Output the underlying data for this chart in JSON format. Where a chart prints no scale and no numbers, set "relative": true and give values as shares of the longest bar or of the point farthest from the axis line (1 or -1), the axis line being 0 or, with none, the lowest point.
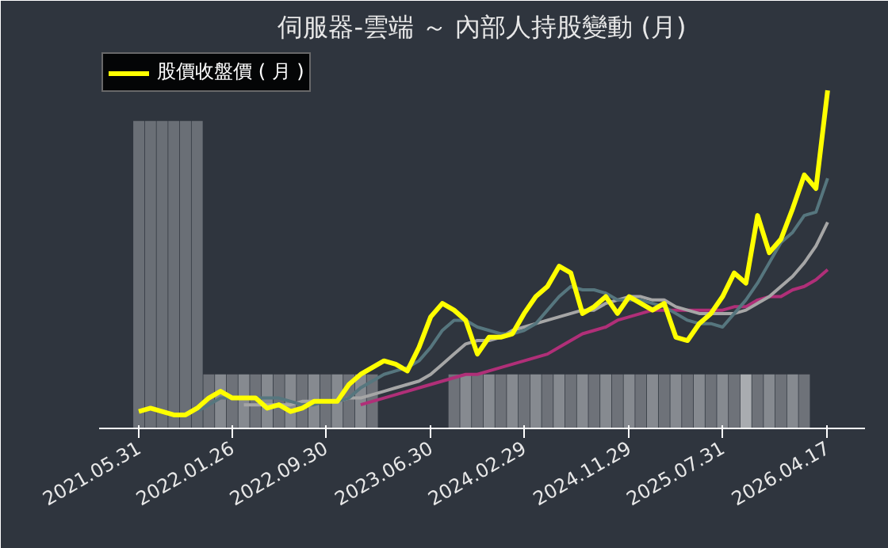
{
  "chart_data": {
    "type": "line",
    "title": "伺服器-雲端 ～ 內部人持股變動 (月)",
    "relative": true,
    "legend": "top left",
    "grid": false,
    "tick_labels": "x",
    "categories": [
      "2021.05.31",
      null,
      null,
      null,
      null,
      null,
      null,
      null,
      "2022.01.26",
      null,
      null,
      null,
      null,
      null,
      null,
      null,
      "2022.09.30",
      null,
      null,
      null,
      null,
      null,
      null,
      null,
      null,
      "2023.06.30",
      null,
      null,
      null,
      null,
      null,
      null,
      null,
      "2024.02.29",
      null,
      null,
      null,
      null,
      null,
      null,
      null,
      null,
      "2024.11.29",
      null,
      null,
      null,
      null,
      null,
      null,
      null,
      "2025.07.31",
      null,
      null,
      null,
      null,
      null,
      null,
      null,
      null,
      "2026.04.17"
    ],
    "series": [
      {
        "type": "bar",
        "colors": [
          "#6a6f76",
          "#6a6f76",
          "#6a6f76",
          "#6a6f76",
          "#6a6f76",
          "#6a6f76",
          "#6e7279",
          "#868a90",
          "#6e7279",
          "#868a90",
          "#6e7279",
          "#868a90",
          "#6e7279",
          "#868a90",
          "#6e7279",
          "#868a90",
          "#6e7279",
          "#868a90",
          "#6e7279",
          "#868a90",
          "#6e7279",
          "#6e7279",
          "#6e7279",
          "#6e7279",
          "#6e7279",
          "#6e7279",
          "#6e7279",
          "#6e7279",
          "#868a90",
          "#6e7279",
          "#868a90",
          "#6e7279",
          "#868a90",
          "#6e7279",
          "#868a90",
          "#6e7279",
          "#868a90",
          "#6e7279",
          "#868a90",
          "#6e7279",
          "#868a90",
          "#6e7279",
          "#868a90",
          "#6e7279",
          "#868a90",
          "#6e7279",
          "#868a90",
          "#6e7279",
          "#868a90",
          "#6e7279",
          "#868a90",
          "#6e7279",
          "#a9acb0",
          "#6e7279",
          "#868a90",
          "#6e7279",
          "#868a90",
          "#6e7279",
          "#6e7279",
          "#6e7279"
        ],
        "values": [
          0.91,
          0.91,
          0.91,
          0.91,
          0.91,
          0.91,
          0.16,
          0.16,
          0.16,
          0.16,
          0.16,
          0.16,
          0.16,
          0.16,
          0.16,
          0.16,
          0.16,
          0.16,
          0.16,
          0.16,
          0.16,
          null,
          null,
          null,
          null,
          null,
          null,
          0.16,
          0.16,
          0.16,
          0.16,
          0.16,
          0.16,
          0.16,
          0.16,
          0.16,
          0.16,
          0.16,
          0.16,
          0.16,
          0.16,
          0.16,
          0.16,
          0.16,
          0.16,
          0.16,
          0.16,
          0.16,
          0.16,
          0.16,
          0.16,
          0.16,
          0.16,
          0.16,
          0.16,
          0.16,
          0.16,
          0.16,
          null,
          null
        ]
      },
      {
        "color": "#b02f78",
        "values": [
          null,
          null,
          null,
          null,
          null,
          null,
          null,
          null,
          null,
          null,
          null,
          null,
          null,
          null,
          null,
          null,
          null,
          null,
          null,
          0.07,
          0.08,
          0.09,
          0.1,
          0.11,
          0.12,
          0.13,
          0.14,
          0.15,
          0.16,
          0.16,
          0.17,
          0.18,
          0.19,
          0.2,
          0.21,
          0.22,
          0.24,
          0.26,
          0.28,
          0.29,
          0.3,
          0.32,
          0.33,
          0.34,
          0.35,
          0.35,
          0.35,
          0.35,
          0.35,
          0.35,
          0.35,
          0.36,
          0.36,
          0.38,
          0.39,
          0.39,
          0.41,
          0.42,
          0.44,
          0.47
        ]
      },
      {
        "color": "#a6a6a6",
        "values": [
          null,
          null,
          null,
          null,
          null,
          null,
          null,
          null,
          null,
          0.07,
          0.07,
          0.07,
          0.07,
          0.07,
          0.08,
          0.08,
          0.08,
          0.08,
          0.09,
          0.09,
          0.1,
          0.11,
          0.12,
          0.13,
          0.14,
          0.16,
          0.19,
          0.22,
          0.25,
          0.26,
          0.26,
          0.27,
          0.29,
          0.3,
          0.31,
          0.32,
          0.33,
          0.34,
          0.35,
          0.35,
          0.37,
          0.38,
          0.39,
          0.39,
          0.38,
          0.38,
          0.36,
          0.35,
          0.34,
          0.34,
          0.34,
          0.34,
          0.35,
          0.37,
          0.39,
          0.42,
          0.45,
          0.49,
          0.54,
          0.61
        ]
      },
      {
        "color": "#56767e",
        "values": [
          null,
          null,
          null,
          null,
          null,
          0.05,
          0.07,
          0.09,
          0.09,
          0.09,
          0.09,
          0.09,
          0.09,
          0.08,
          0.07,
          0.07,
          0.08,
          0.08,
          0.09,
          0.12,
          0.14,
          0.16,
          0.17,
          0.18,
          0.2,
          0.24,
          0.29,
          0.32,
          0.32,
          0.3,
          0.29,
          0.28,
          0.28,
          0.29,
          0.31,
          0.35,
          0.39,
          0.42,
          0.41,
          0.41,
          0.4,
          0.38,
          0.38,
          0.38,
          0.37,
          0.36,
          0.34,
          0.32,
          0.31,
          0.31,
          0.3,
          0.34,
          0.38,
          0.43,
          0.49,
          0.55,
          0.58,
          0.63,
          0.64,
          0.74
        ]
      },
      {
        "name": "股價收盤價 ( 月 )",
        "color": "#ffff00",
        "values": [
          0.05,
          0.06,
          0.05,
          0.04,
          0.04,
          0.06,
          0.09,
          0.11,
          0.09,
          0.09,
          0.09,
          0.06,
          0.07,
          0.05,
          0.06,
          0.08,
          0.08,
          0.08,
          0.13,
          0.16,
          0.18,
          0.2,
          0.19,
          0.17,
          0.24,
          0.33,
          0.37,
          0.35,
          0.32,
          0.22,
          0.27,
          0.27,
          0.28,
          0.34,
          0.39,
          0.42,
          0.48,
          0.46,
          0.34,
          0.36,
          0.39,
          0.34,
          0.39,
          0.37,
          0.35,
          0.37,
          0.27,
          0.26,
          0.31,
          0.34,
          0.39,
          0.46,
          0.43,
          0.63,
          0.52,
          0.56,
          0.65,
          0.75,
          0.71,
          1
        ]
      }
    ]
  }
}
